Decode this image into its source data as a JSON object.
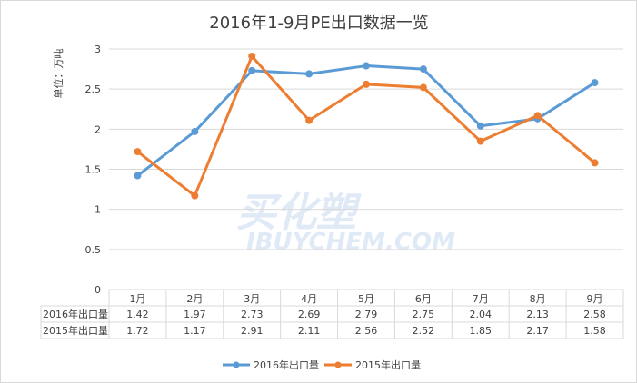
{
  "chart_data": {
    "type": "line",
    "title": "2016年1-9月PE出口数据一览",
    "ylabel": "单位：万吨",
    "xlabel": "",
    "ylim": [
      0,
      3
    ],
    "yticks": [
      "0",
      "0.5",
      "1",
      "1.5",
      "2",
      "2.5",
      "3"
    ],
    "grid": true,
    "legend_position": "bottom",
    "categories": [
      "1月",
      "2月",
      "3月",
      "4月",
      "5月",
      "6月",
      "7月",
      "8月",
      "9月"
    ],
    "series": [
      {
        "name": "2016年出口量",
        "color": "#5b9bd5",
        "values": [
          1.42,
          1.97,
          2.73,
          2.69,
          2.79,
          2.75,
          2.04,
          2.13,
          2.58
        ],
        "labels": [
          "1.42",
          "1.97",
          "2.73",
          "2.69",
          "2.79",
          "2.75",
          "2.04",
          "2.13",
          "2.58"
        ]
      },
      {
        "name": "2015年出口量",
        "color": "#ed7d31",
        "values": [
          1.72,
          1.17,
          2.91,
          2.11,
          2.56,
          2.52,
          1.85,
          2.17,
          1.58
        ],
        "labels": [
          "1.72",
          "1.17",
          "2.91",
          "2.11",
          "2.56",
          "2.52",
          "1.85",
          "2.17",
          "1.58"
        ]
      }
    ]
  },
  "watermark": {
    "line1": "买化塑",
    "line2": "IBUYCHEM.COM"
  }
}
